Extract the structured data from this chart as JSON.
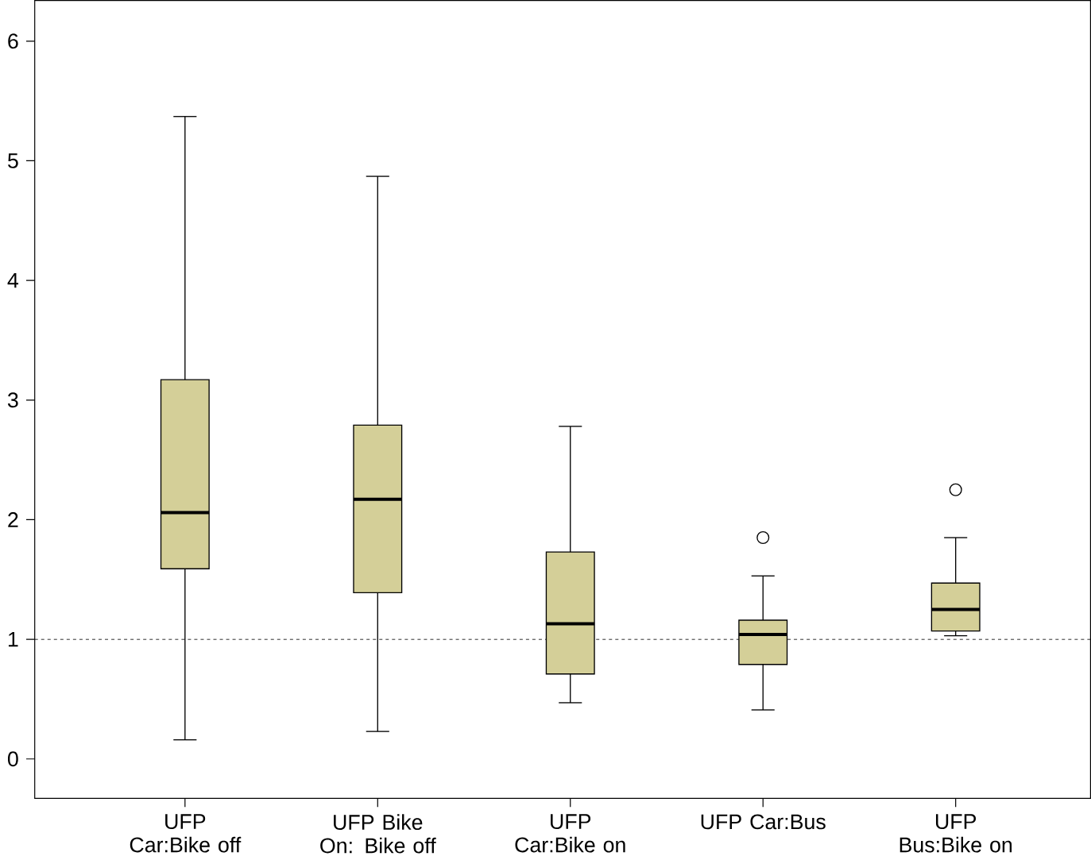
{
  "chart_data": {
    "type": "box",
    "categories": [
      "UFP Car:Bike off",
      "UFP Bike On: Bike off",
      "UFP Car:Bike on",
      "UFP Car:Bus",
      "UFP Bus:Bike on"
    ],
    "boxes": [
      {
        "low": 0.16,
        "q1": 1.59,
        "median": 2.06,
        "q3": 3.17,
        "high": 5.37
      },
      {
        "low": 0.23,
        "q1": 1.39,
        "median": 2.17,
        "q3": 2.79,
        "high": 4.87
      },
      {
        "low": 0.47,
        "q1": 0.71,
        "median": 1.13,
        "q3": 1.73,
        "high": 2.78
      },
      {
        "low": 0.41,
        "q1": 0.79,
        "median": 1.04,
        "q3": 1.16,
        "high": 1.53,
        "outliers": [
          1.85
        ]
      },
      {
        "low": 1.03,
        "q1": 1.07,
        "median": 1.25,
        "q3": 1.47,
        "high": 1.85,
        "outliers": [
          2.25
        ]
      }
    ],
    "color": "#d4cf98",
    "ylim": [
      -0.33,
      6.34
    ],
    "yticks": [
      0,
      1,
      2,
      3,
      4,
      5,
      6
    ],
    "ref_lines": [
      {
        "axis": "y",
        "value": 1,
        "line_style": "dashed"
      }
    ],
    "grid": false
  }
}
